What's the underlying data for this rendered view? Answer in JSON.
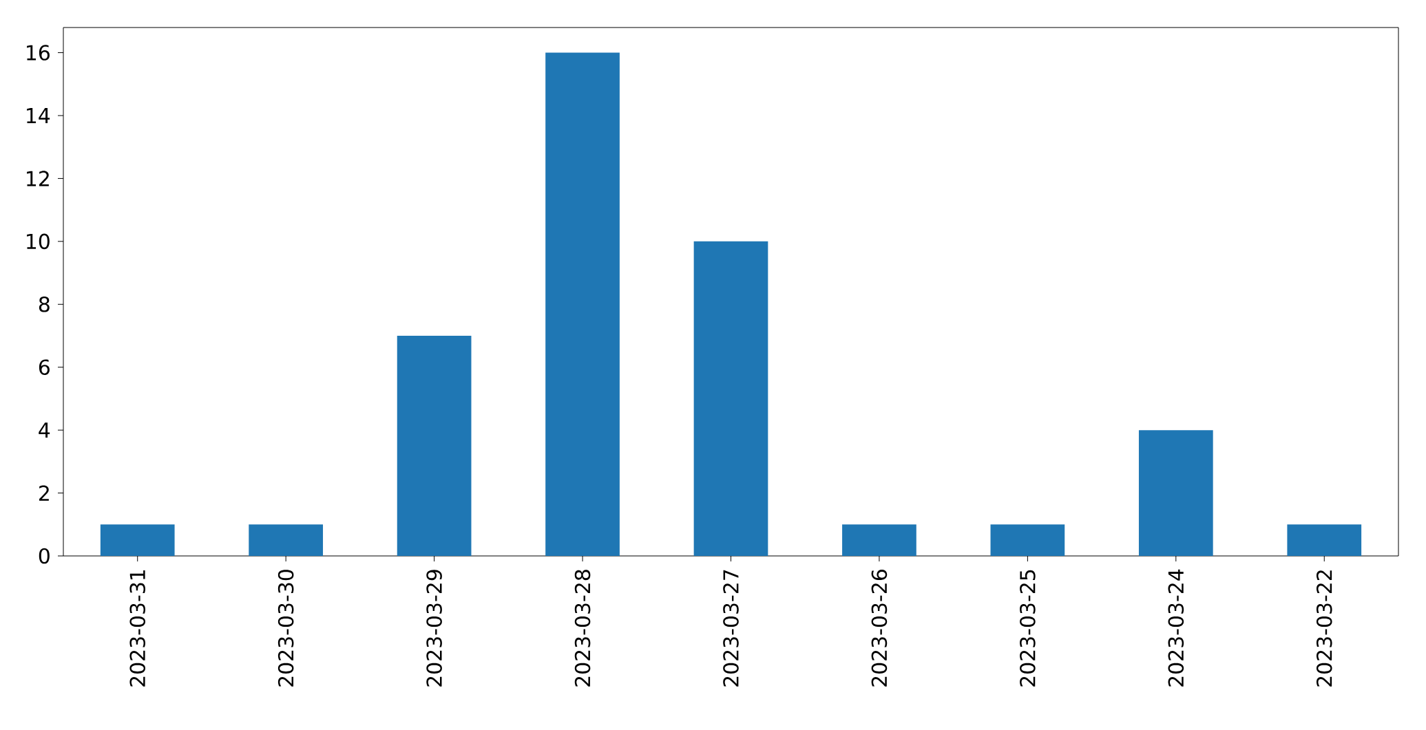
{
  "chart_data": {
    "type": "bar",
    "categories": [
      "2023-03-31",
      "2023-03-30",
      "2023-03-29",
      "2023-03-28",
      "2023-03-27",
      "2023-03-26",
      "2023-03-25",
      "2023-03-24",
      "2023-03-22"
    ],
    "values": [
      1,
      1,
      7,
      16,
      10,
      1,
      1,
      4,
      1
    ],
    "color": "#1f77b4",
    "ylim": [
      0,
      16.8
    ],
    "yticks": [
      0,
      2,
      4,
      6,
      8,
      10,
      12,
      14,
      16
    ]
  }
}
